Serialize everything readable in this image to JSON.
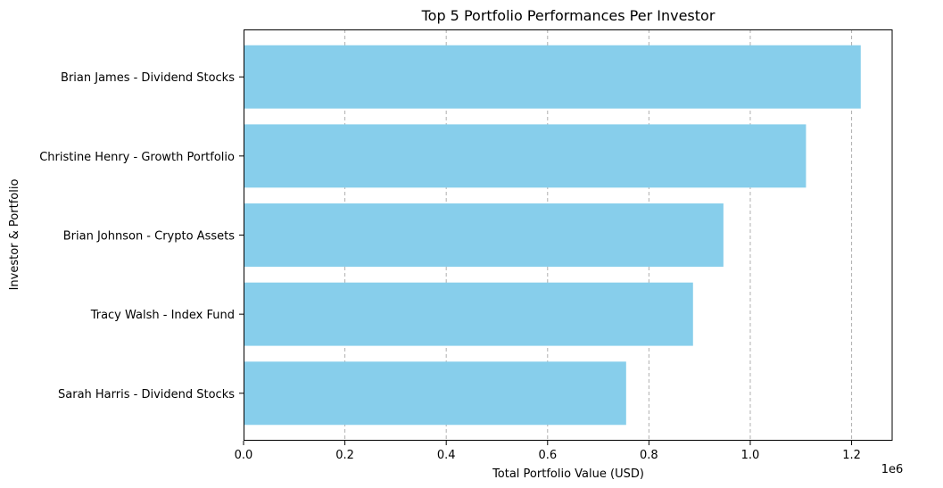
{
  "chart_data": {
    "type": "bar",
    "orientation": "horizontal",
    "title": "Top 5 Portfolio Performances Per Investor",
    "xlabel": "Total Portfolio Value (USD)",
    "ylabel": "Investor & Portfolio",
    "x_scale_label": "1e6",
    "xlim": [
      0,
      1280000
    ],
    "x_ticks": [
      0,
      200000,
      400000,
      600000,
      800000,
      1000000,
      1200000
    ],
    "x_tick_labels": [
      "0.0",
      "0.2",
      "0.4",
      "0.6",
      "0.8",
      "1.0",
      "1.2"
    ],
    "grid": "x-axis dashed",
    "categories": [
      "Sarah Harris - Dividend Stocks",
      "Tracy Walsh - Index Fund",
      "Brian Johnson - Crypto Assets",
      "Christine Henry - Growth Portfolio",
      "Brian James - Dividend Stocks"
    ],
    "values": [
      755000,
      887000,
      947000,
      1110000,
      1218000
    ],
    "bar_color": "#87ceeb"
  }
}
